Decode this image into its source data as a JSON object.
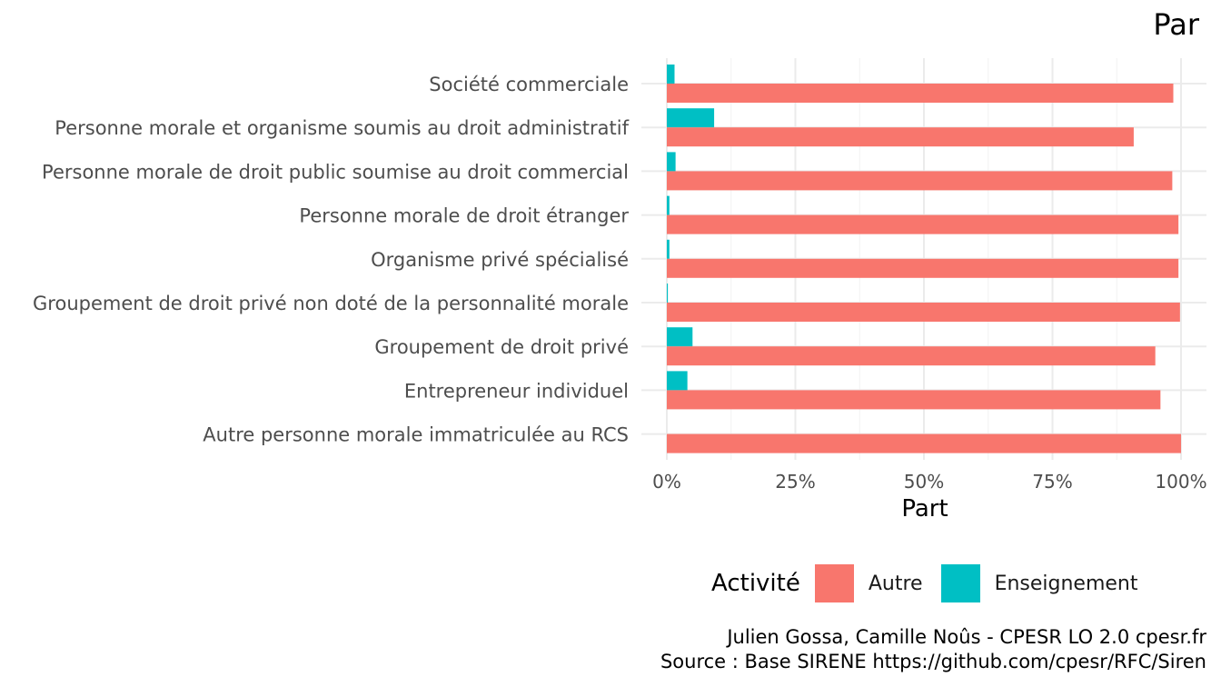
{
  "title": "Par",
  "colors": {
    "autre": "#F8766D",
    "enseignement": "#00BFC4"
  },
  "chart_data": {
    "type": "bar",
    "orientation": "horizontal",
    "categories": [
      "Société commerciale",
      "Personne morale et organisme soumis au droit administratif",
      "Personne morale de droit public soumise au droit commercial",
      "Personne morale de droit étranger",
      "Organisme privé spécialisé",
      "Groupement de droit privé non doté de la personnalité morale",
      "Groupement de droit privé",
      "Entrepreneur individuel",
      "Autre personne morale immatriculée au RCS"
    ],
    "series": [
      {
        "name": "Autre",
        "color": "#F8766D",
        "values": [
          98.5,
          90.8,
          98.3,
          99.5,
          99.5,
          99.8,
          95.0,
          96.0,
          100
        ]
      },
      {
        "name": "Enseignement",
        "color": "#00BFC4",
        "values": [
          1.5,
          9.2,
          1.7,
          0.5,
          0.5,
          0.2,
          5.0,
          4.0,
          0
        ]
      }
    ],
    "xlabel": "Part",
    "ylabel": "",
    "xlim": [
      0,
      100
    ],
    "xticks": [
      "0%",
      "25%",
      "50%",
      "75%",
      "100%"
    ],
    "xtick_values": [
      0,
      25,
      50,
      75,
      100
    ],
    "grid": true,
    "legend": {
      "title": "Activité",
      "position": "bottom",
      "entries": [
        "Autre",
        "Enseignement"
      ]
    }
  },
  "caption": {
    "line1": "Julien Gossa, Camille Noûs - CPESR LO 2.0 cpesr.fr",
    "line2": "Source : Base SIRENE https://github.com/cpesr/RFC/Siren"
  }
}
